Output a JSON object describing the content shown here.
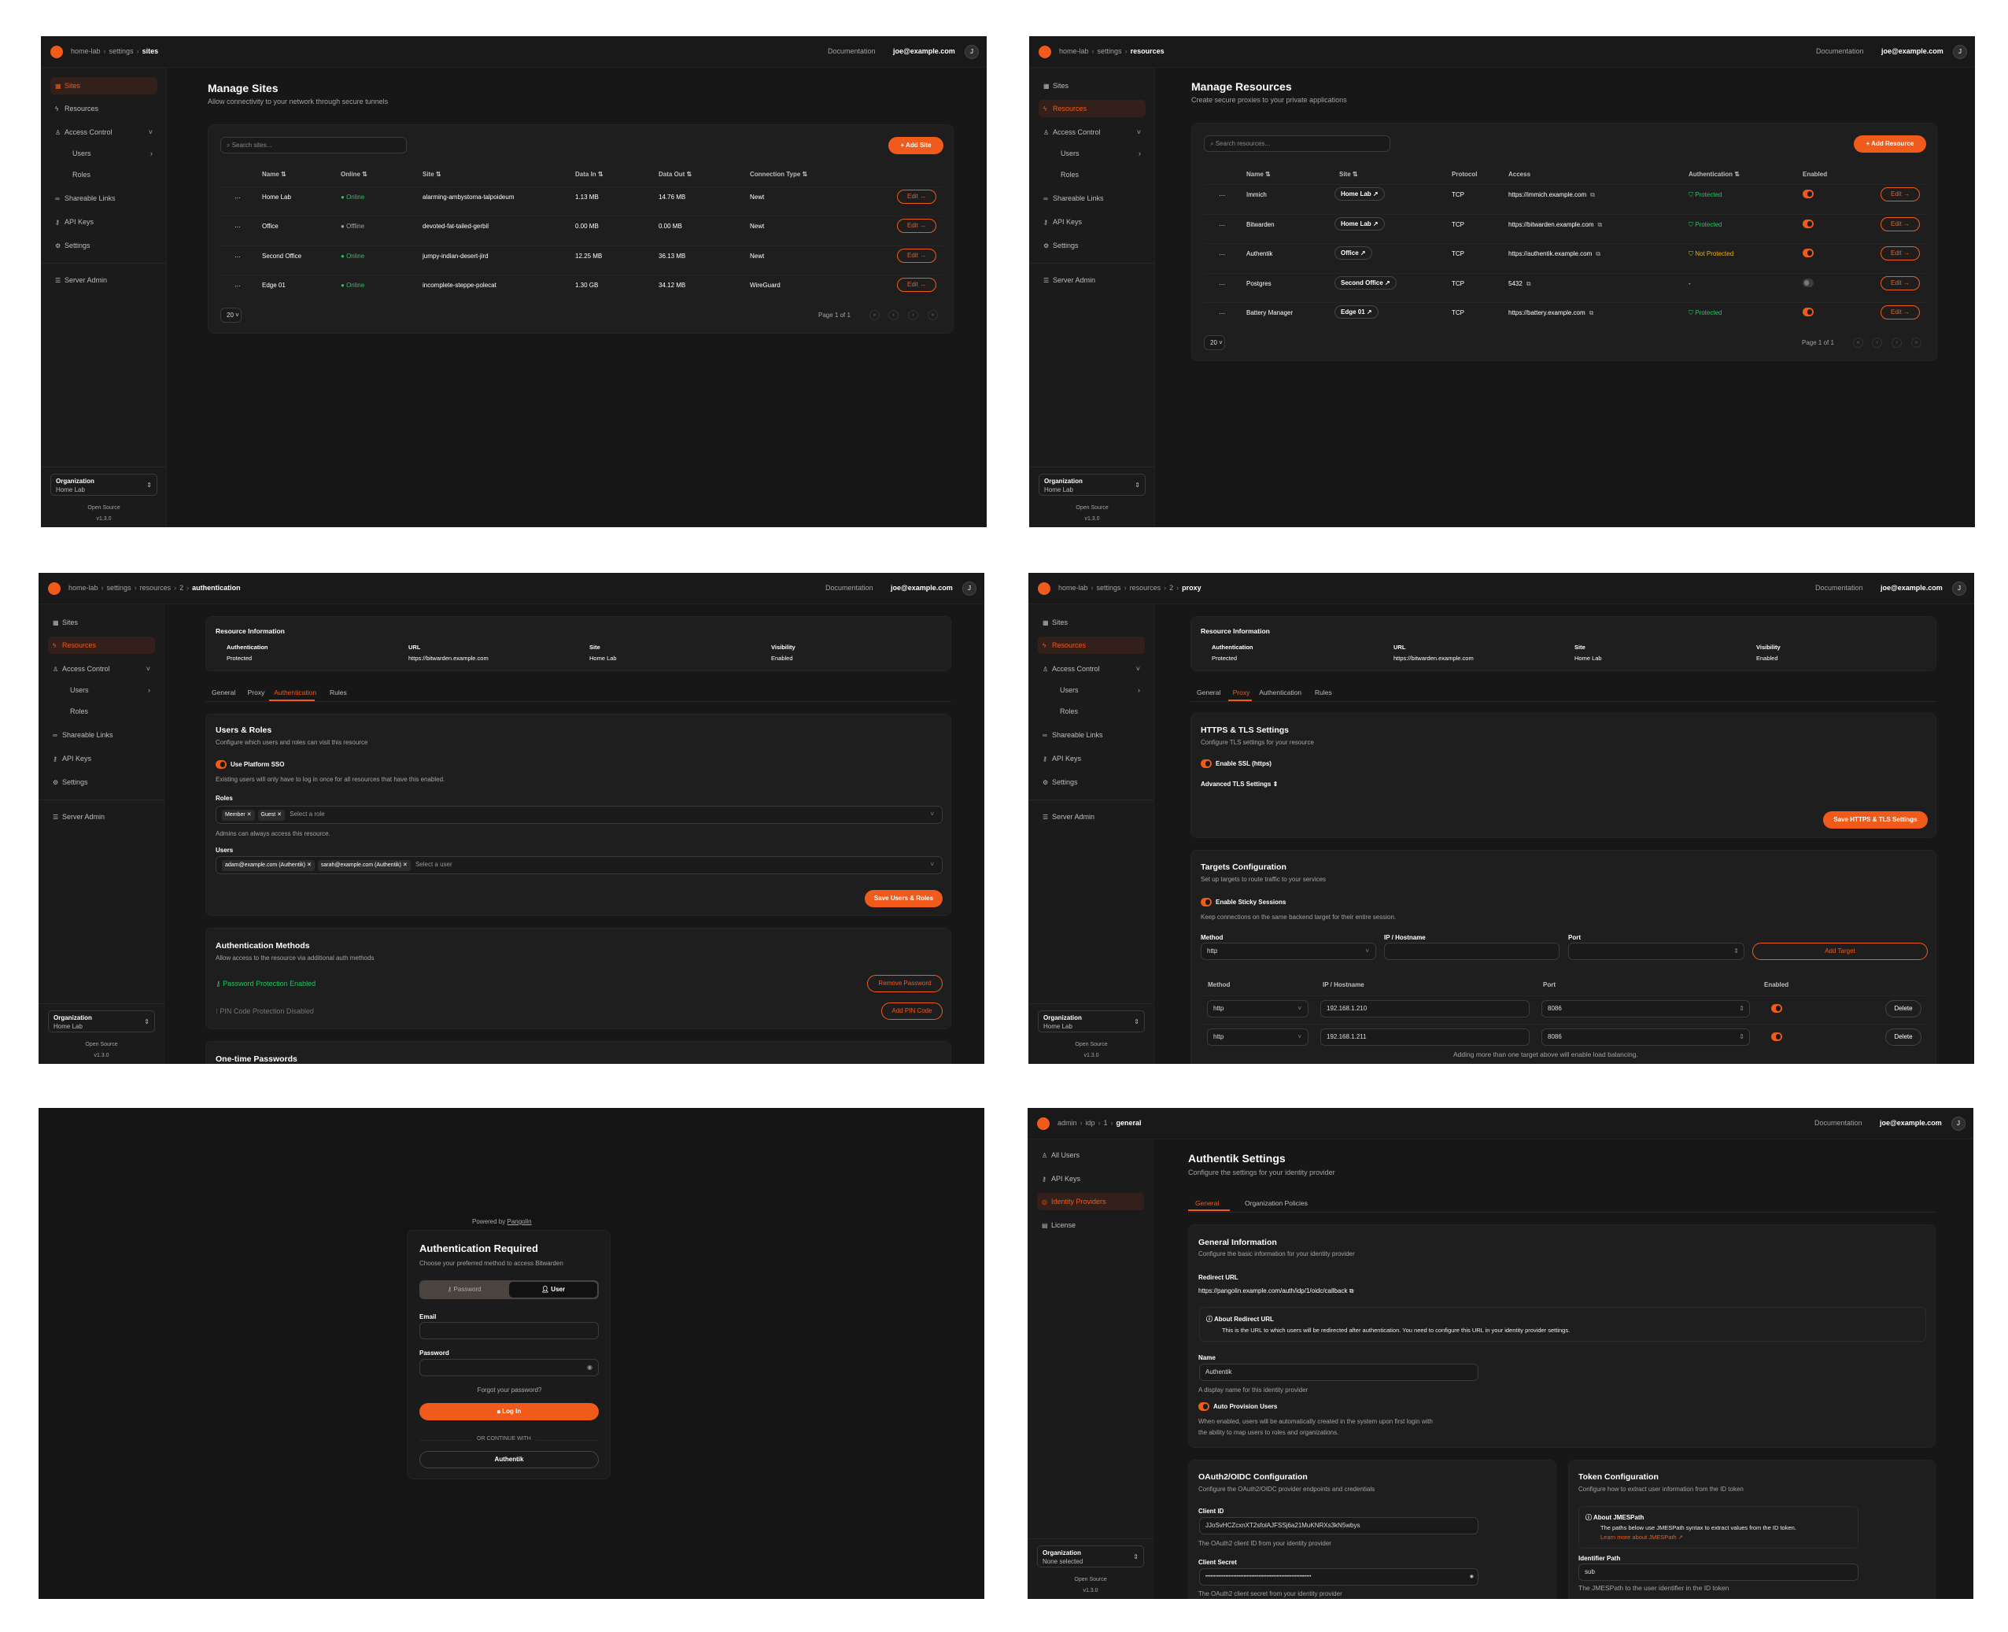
{
  "app": {
    "documentation": "Documentation",
    "user_email": "joe@example.com",
    "avatar_initial": "J",
    "accent": "#f05a1a",
    "success": "#22c55e",
    "warning": "#eab308"
  },
  "sidebar": {
    "items": [
      {
        "label": "Sites",
        "icon": "sites-icon"
      },
      {
        "label": "Resources",
        "icon": "resources-icon"
      },
      {
        "label": "Access Control",
        "icon": "users-icon"
      },
      {
        "label": "Users",
        "icon": ""
      },
      {
        "label": "Roles",
        "icon": ""
      },
      {
        "label": "Shareable Links",
        "icon": "link-icon"
      },
      {
        "label": "API Keys",
        "icon": "key-icon"
      },
      {
        "label": "Settings",
        "icon": "gear-icon"
      },
      {
        "label": "Server Admin",
        "icon": "server-icon"
      }
    ],
    "org_label": "Organization",
    "org_value": "Home Lab",
    "open_source": "Open Source",
    "version": "v1.3.0"
  },
  "admin_sidebar": {
    "items": [
      {
        "label": "All Users",
        "icon": "users-icon"
      },
      {
        "label": "API Keys",
        "icon": "key-icon"
      },
      {
        "label": "Identity Providers",
        "icon": "fingerprint-icon"
      },
      {
        "label": "License",
        "icon": "license-icon"
      }
    ],
    "org_label": "Organization",
    "org_value": "None selected"
  },
  "sites_page": {
    "breadcrumb": [
      "home-lab",
      "settings",
      "sites"
    ],
    "title": "Manage Sites",
    "subtitle": "Allow connectivity to your network through secure tunnels",
    "search_placeholder": "Search sites...",
    "add_label": "+ Add Site",
    "columns": [
      "Name ⇅",
      "Online ⇅",
      "Site ⇅",
      "Data In ⇅",
      "Data Out ⇅",
      "Connection Type ⇅"
    ],
    "rows": [
      {
        "name": "Home Lab",
        "online": "Online",
        "status": "online",
        "site": "alarming-ambystoma-talpoideum",
        "data_in": "1.13 MB",
        "data_out": "14.76 MB",
        "type": "Newt"
      },
      {
        "name": "Office",
        "online": "Offline",
        "status": "offline",
        "site": "devoted-fat-tailed-gerbil",
        "data_in": "0.00 MB",
        "data_out": "0.00 MB",
        "type": "Newt"
      },
      {
        "name": "Second Office",
        "online": "Online",
        "status": "online",
        "site": "jumpy-indian-desert-jird",
        "data_in": "12.25 MB",
        "data_out": "36.13 MB",
        "type": "Newt"
      },
      {
        "name": "Edge 01",
        "online": "Online",
        "status": "online",
        "site": "incomplete-steppe-polecat",
        "data_in": "1.30 GB",
        "data_out": "34.12 MB",
        "type": "WireGuard"
      }
    ],
    "edit_label": "Edit →",
    "page_size": "20",
    "page_info": "Page 1 of 1"
  },
  "resources_page": {
    "breadcrumb": [
      "home-lab",
      "settings",
      "resources"
    ],
    "title": "Manage Resources",
    "subtitle": "Create secure proxies to your private applications",
    "search_placeholder": "Search resources...",
    "add_label": "+ Add Resource",
    "columns": [
      "Name ⇅",
      "Site ⇅",
      "Protocol",
      "Access",
      "Authentication ⇅",
      "Enabled"
    ],
    "rows": [
      {
        "name": "Immich",
        "site": "Home Lab ↗",
        "protocol": "TCP",
        "access": "https://immich.example.com",
        "auth": "Protected",
        "auth_status": "protected",
        "enabled": true
      },
      {
        "name": "Bitwarden",
        "site": "Home Lab ↗",
        "protocol": "TCP",
        "access": "https://bitwarden.example.com",
        "auth": "Protected",
        "auth_status": "protected",
        "enabled": true
      },
      {
        "name": "Authentik",
        "site": "Office ↗",
        "protocol": "TCP",
        "access": "https://authentik.example.com",
        "auth": "Not Protected",
        "auth_status": "unprotected",
        "enabled": true
      },
      {
        "name": "Postgres",
        "site": "Second Office ↗",
        "protocol": "TCP",
        "access": "5432",
        "auth": "-",
        "auth_status": "none",
        "enabled": false
      },
      {
        "name": "Battery Manager",
        "site": "Edge 01 ↗",
        "protocol": "TCP",
        "access": "https://battery.example.com",
        "auth": "Protected",
        "auth_status": "protected",
        "enabled": true
      }
    ],
    "edit_label": "Edit →",
    "page_size": "20",
    "page_info": "Page 1 of 1"
  },
  "resource_info": {
    "title": "Resource Information",
    "auth_label": "Authentication",
    "auth_value": "Protected",
    "url_label": "URL",
    "url_value": "https://bitwarden.example.com",
    "site_label": "Site",
    "site_value": "Home Lab",
    "visibility_label": "Visibility",
    "visibility_value": "Enabled",
    "tabs": [
      "General",
      "Proxy",
      "Authentication",
      "Rules"
    ]
  },
  "auth_page": {
    "breadcrumb": [
      "home-lab",
      "settings",
      "resources",
      "2",
      "authentication"
    ],
    "users_roles": {
      "title": "Users & Roles",
      "desc": "Configure which users and roles can visit this resource",
      "sso_label": "Use Platform SSO",
      "sso_enabled": true,
      "sso_help": "Existing users will only have to log in once for all resources that have this enabled.",
      "roles_label": "Roles",
      "roles": [
        "Member",
        "Guest"
      ],
      "roles_placeholder": "Select a role",
      "roles_help": "Admins can always access this resource.",
      "users_label": "Users",
      "users": [
        "adam@example.com (Authentik)",
        "sarah@example.com (Authentik)"
      ],
      "users_placeholder": "Select a user",
      "save_label": "Save Users & Roles"
    },
    "methods": {
      "title": "Authentication Methods",
      "desc": "Allow access to the resource via additional auth methods",
      "password_status": "Password Protection Enabled",
      "remove_password": "Remove Password",
      "pin_status": "PIN Code Protection Disabled",
      "add_pin": "Add PIN Code"
    },
    "otp_title": "One-time Passwords"
  },
  "proxy_page": {
    "breadcrumb": [
      "home-lab",
      "settings",
      "resources",
      "2",
      "proxy"
    ],
    "tls": {
      "title": "HTTPS & TLS Settings",
      "desc": "Configure TLS settings for your resource",
      "ssl_label": "Enable SSL (https)",
      "ssl_enabled": true,
      "advanced_label": "Advanced TLS Settings ⇕",
      "save_label": "Save HTTPS & TLS Settings"
    },
    "targets": {
      "title": "Targets Configuration",
      "desc": "Set up targets to route traffic to your services",
      "sticky_label": "Enable Sticky Sessions",
      "sticky_enabled": true,
      "sticky_help": "Keep connections on the same backend target for their entire session.",
      "method_label": "Method",
      "ip_label": "IP / Hostname",
      "port_label": "Port",
      "method_value": "http",
      "add_label": "Add Target",
      "columns": [
        "Method",
        "IP / Hostname",
        "Port",
        "Enabled"
      ],
      "rows": [
        {
          "method": "http",
          "ip": "192.168.1.210",
          "port": "8086",
          "enabled": true
        },
        {
          "method": "http",
          "ip": "192.168.1.211",
          "port": "8086",
          "enabled": true
        }
      ],
      "delete_label": "Delete",
      "footer": "Adding more than one target above will enable load balancing."
    }
  },
  "login_page": {
    "powered_by": "Powered by",
    "brand": "Pangolin",
    "title": "Authentication Required",
    "subtitle": "Choose your preferred method to access Bitwarden",
    "tab_password": "Password",
    "tab_user": "User",
    "email_label": "Email",
    "password_label": "Password",
    "forgot": "Forgot your password?",
    "login_label": "Log In",
    "divider": "OR CONTINUE WITH",
    "sso_label": "Authentik"
  },
  "idp_page": {
    "breadcrumb": [
      "admin",
      "idp",
      "1",
      "general"
    ],
    "title": "Authentik Settings",
    "subtitle": "Configure the settings for your identity provider",
    "tabs": [
      "General",
      "Organization Policies"
    ],
    "general": {
      "title": "General Information",
      "desc": "Configure the basic information for your identity provider",
      "redirect_label": "Redirect URL",
      "redirect_value": "https://pangolin.example.com/auth/idp/1/oidc/callback",
      "about_title": "About Redirect URL",
      "about_text": "This is the URL to which users will be redirected after authentication. You need to configure this URL in your identity provider settings.",
      "name_label": "Name",
      "name_value": "Authentik",
      "name_help": "A display name for this identity provider",
      "auto_label": "Auto Provision Users",
      "auto_enabled": true,
      "auto_help_1": "When enabled, users will be automatically created in the system upon first login with",
      "auto_help_2": "the ability to map users to roles and organizations."
    },
    "oauth": {
      "title": "OAuth2/OIDC Configuration",
      "desc": "Configure the OAuth2/OIDC provider endpoints and credentials",
      "client_id_label": "Client ID",
      "client_id_value": "JJoSvHCZcxnXT2sfolAJFSSj6a21MuKNRXs3kN5wbys",
      "client_id_help": "The OAuth2 client ID from your identity provider",
      "client_secret_label": "Client Secret",
      "client_secret_value": "••••••••••••••••••••••••••••••••••••••••••••••••••••••••••••••••",
      "client_secret_help": "The OAuth2 client secret from your identity provider"
    },
    "token": {
      "title": "Token Configuration",
      "desc": "Configure how to extract user information from the ID token",
      "about_title": "About JMESPath",
      "about_text": "The paths below use JMESPath syntax to extract values from the ID token.",
      "about_link": "Learn more about JMESPath ↗",
      "identifier_label": "Identifier Path",
      "identifier_value": "sub",
      "identifier_help": "The JMESPath to the user identifier in the ID token"
    }
  }
}
